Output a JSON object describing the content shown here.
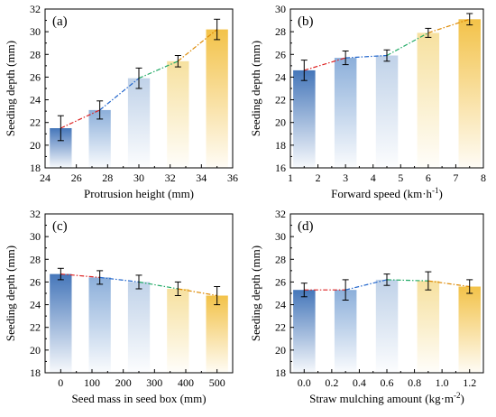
{
  "colors": {
    "blue": "#4f7fbf",
    "yellow": "#f2c24b",
    "trend": [
      "#dd2222",
      "#2266cc",
      "#22aa66",
      "#dd8800"
    ]
  },
  "chart_data": [
    {
      "type": "bar",
      "panel_label": "(a)",
      "xlabel": "Protrusion height (mm)",
      "ylabel": "Seeding depth (mm)",
      "xlim": [
        24,
        36
      ],
      "ylim": [
        18,
        32
      ],
      "xticks": [
        "24",
        "26",
        "28",
        "30",
        "32",
        "34",
        "36"
      ],
      "yticks": [
        "18",
        "20",
        "22",
        "24",
        "26",
        "28",
        "30",
        "32"
      ],
      "x": [
        25,
        27.5,
        30,
        32.5,
        35
      ],
      "values": [
        21.5,
        23.1,
        25.9,
        27.4,
        30.2
      ],
      "errors": [
        1.1,
        0.8,
        0.9,
        0.5,
        0.9
      ],
      "bar_width": 1.4
    },
    {
      "type": "bar",
      "panel_label": "(b)",
      "xlabel": "Forward speed (km·h",
      "xlabel_sup": "-1",
      "xlabel_tail": ")",
      "ylabel": "Seeding depth (mm)",
      "xlim": [
        1,
        8
      ],
      "ylim": [
        16,
        30
      ],
      "xticks": [
        "1",
        "2",
        "3",
        "4",
        "5",
        "6",
        "7",
        "8"
      ],
      "yticks": [
        "16",
        "18",
        "20",
        "22",
        "24",
        "26",
        "28",
        "30"
      ],
      "x": [
        1.5,
        3,
        4.5,
        6,
        7.5
      ],
      "values": [
        24.6,
        25.7,
        25.9,
        27.9,
        29.1
      ],
      "errors": [
        0.9,
        0.6,
        0.5,
        0.4,
        0.5
      ],
      "bar_width": 0.8
    },
    {
      "type": "bar",
      "panel_label": "(c)",
      "xlabel": "Seed mass in seed box (mm)",
      "ylabel": "Seeding depth (mm)",
      "xlim": [
        -50,
        550
      ],
      "ylim": [
        18,
        32
      ],
      "xticks": [
        "0",
        "100",
        "200",
        "300",
        "400",
        "500"
      ],
      "yticks": [
        "18",
        "20",
        "22",
        "24",
        "26",
        "28",
        "30",
        "32"
      ],
      "x": [
        0,
        125,
        250,
        375,
        500
      ],
      "values": [
        26.7,
        26.4,
        26.0,
        25.4,
        24.8
      ],
      "errors": [
        0.5,
        0.6,
        0.6,
        0.6,
        0.8
      ],
      "bar_width": 70
    },
    {
      "type": "bar",
      "panel_label": "(d)",
      "xlabel": "Straw mulching amount (kg·m",
      "xlabel_sup": "-2",
      "xlabel_tail": ")",
      "ylabel": "Seeding depth (mm)",
      "xlim": [
        -0.1,
        1.3
      ],
      "ylim": [
        18,
        32
      ],
      "xticks": [
        "0.0",
        "0.2",
        "0.4",
        "0.6",
        "0.8",
        "1.0",
        "1.2"
      ],
      "yticks": [
        "18",
        "20",
        "22",
        "24",
        "26",
        "28",
        "30",
        "32"
      ],
      "x": [
        0,
        0.3,
        0.6,
        0.9,
        1.2
      ],
      "values": [
        25.3,
        25.3,
        26.2,
        26.1,
        25.6
      ],
      "errors": [
        0.6,
        0.9,
        0.5,
        0.8,
        0.6
      ],
      "bar_width": 0.16
    }
  ]
}
